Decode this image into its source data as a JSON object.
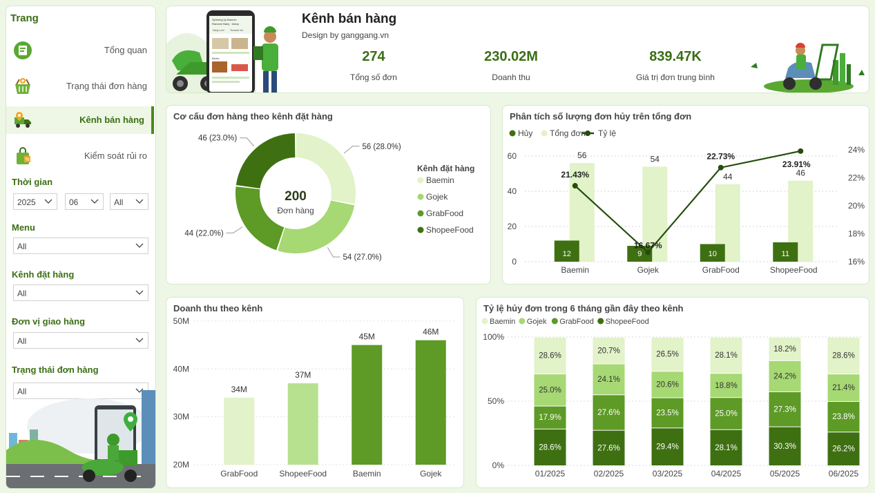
{
  "colors": {
    "baemin": "#e2f2c9",
    "gojek": "#a6d873",
    "grabfood": "#5d9a26",
    "shopeefood": "#3e7012",
    "accent": "#3b6e14",
    "line": "#254d0c"
  },
  "sidebar": {
    "title": "Trang",
    "items": [
      {
        "label": "Tổng quan",
        "icon": "overview-icon"
      },
      {
        "label": "Trạng thái đơn hàng",
        "icon": "basket-icon"
      },
      {
        "label": "Kênh bán hàng",
        "icon": "delivery-truck-icon"
      },
      {
        "label": "Kiểm soát rủi ro",
        "icon": "shopping-bag-icon"
      }
    ],
    "filters": {
      "time_label": "Thời gian",
      "year": "2025",
      "month": "06",
      "day": "All",
      "menu_label": "Menu",
      "menu": "All",
      "channel_label": "Kênh đặt hàng",
      "channel": "All",
      "shipper_label": "Đơn vị giao hàng",
      "shipper": "All",
      "status_label": "Trạng thái đơn hàng",
      "status": "All"
    }
  },
  "header": {
    "title": "Kênh bán hàng",
    "subtitle": "Design by ganggang.vn",
    "phone_text": {
      "line1": "Spinning by Baemin",
      "line2": "Random Baby · Astop",
      "chip1": "Dang Lumi",
      "chip2": "Tsunade bot",
      "section": "Bento"
    },
    "kpis": [
      {
        "value": "274",
        "label": "Tổng số đơn"
      },
      {
        "value": "230.02M",
        "label": "Doanh thu"
      },
      {
        "value": "839.47K",
        "label": "Giá trị đơn trung bình"
      }
    ]
  },
  "chart_data": [
    {
      "type": "donut",
      "title": "Cơ cấu đơn hàng theo kênh đặt hàng",
      "center_value": "200",
      "center_label": "Đơn hàng",
      "legend_title": "Kênh đặt hàng",
      "categories": [
        "Baemin",
        "Gojek",
        "GrabFood",
        "ShopeeFood"
      ],
      "values": [
        56,
        54,
        44,
        46
      ],
      "labels": [
        "56 (28.0%)",
        "54 (27.0%)",
        "44 (22.0%)",
        "46 (23.0%)"
      ]
    },
    {
      "type": "bar+line",
      "title": "Phân tích số lượng đơn hủy trên tổng đơn",
      "legend": [
        "Hủy",
        "Tổng đơn",
        "Tỷ lệ"
      ],
      "categories": [
        "Baemin",
        "Gojek",
        "GrabFood",
        "ShopeeFood"
      ],
      "series": [
        {
          "name": "Hủy",
          "values": [
            12,
            9,
            10,
            11
          ]
        },
        {
          "name": "Tổng đơn",
          "values": [
            56,
            54,
            44,
            46
          ]
        },
        {
          "name": "Tỷ lệ",
          "values": [
            21.43,
            16.67,
            22.73,
            23.91
          ],
          "labels": [
            "21.43%",
            "16.67%",
            "22.73%",
            "23.91%"
          ]
        }
      ],
      "ylim": [
        0,
        60
      ],
      "yticks": [
        "0",
        "20",
        "40",
        "60"
      ],
      "y2lim": [
        16,
        24
      ],
      "y2ticks": [
        "16%",
        "18%",
        "20%",
        "22%",
        "24%"
      ]
    },
    {
      "type": "bar",
      "title": "Doanh thu theo kênh",
      "categories": [
        "GrabFood",
        "ShopeeFood",
        "Baemin",
        "Gojek"
      ],
      "values": [
        34,
        37,
        45,
        46
      ],
      "value_labels": [
        "34M",
        "37M",
        "45M",
        "46M"
      ],
      "ylim": [
        20,
        50
      ],
      "yticks": [
        "20M",
        "30M",
        "40M",
        "50M"
      ]
    },
    {
      "type": "stacked-bar-100",
      "title": "Tỷ lệ hủy đơn trong 6 tháng gần đây theo kênh",
      "legend": [
        "Baemin",
        "Gojek",
        "GrabFood",
        "ShopeeFood"
      ],
      "categories": [
        "01/2025",
        "02/2025",
        "03/2025",
        "04/2025",
        "05/2025",
        "06/2025"
      ],
      "series": [
        {
          "name": "Baemin",
          "values": [
            28.6,
            20.7,
            26.5,
            28.1,
            18.2,
            28.6
          ]
        },
        {
          "name": "Gojek",
          "values": [
            25.0,
            24.1,
            20.6,
            18.8,
            24.2,
            21.4
          ]
        },
        {
          "name": "GrabFood",
          "values": [
            17.9,
            27.6,
            23.5,
            25.0,
            27.3,
            23.8
          ]
        },
        {
          "name": "ShopeeFood",
          "values": [
            28.6,
            27.6,
            29.4,
            28.1,
            30.3,
            26.2
          ]
        }
      ],
      "yticks": [
        "0%",
        "50%",
        "100%"
      ]
    }
  ]
}
